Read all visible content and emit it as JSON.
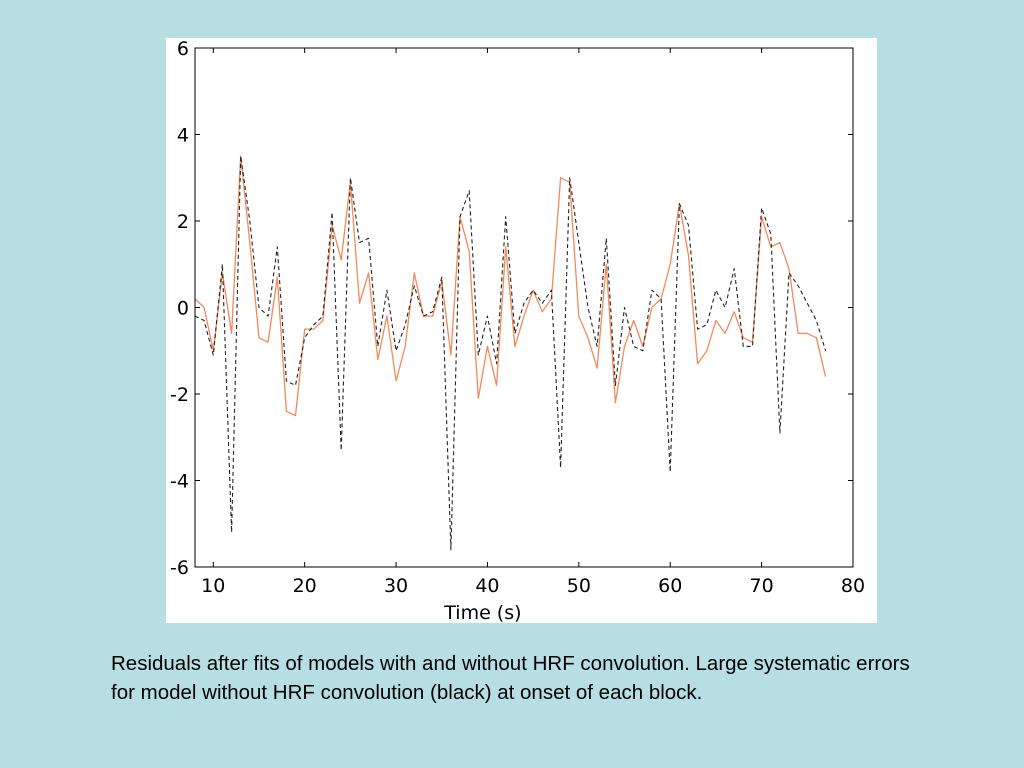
{
  "caption": "Residuals after fits of models with and without HRF convolution. Large systematic errors for model without HRF convolution (black) at onset of each block.",
  "chart_data": {
    "type": "line",
    "title": "",
    "xlabel": "Time (s)",
    "ylabel": "",
    "xlim": [
      8,
      80
    ],
    "ylim": [
      -6,
      6
    ],
    "xticks": [
      10,
      20,
      30,
      40,
      50,
      60,
      70,
      80
    ],
    "yticks": [
      -6,
      -4,
      -2,
      0,
      2,
      4,
      6
    ],
    "grid": false,
    "legend": "none",
    "series": [
      {
        "color": "#f08a5d",
        "line_style": "solid",
        "x": [
          8,
          9,
          10,
          11,
          12,
          13,
          14,
          15,
          16,
          17,
          18,
          19,
          20,
          21,
          22,
          23,
          24,
          25,
          26,
          27,
          28,
          29,
          30,
          31,
          32,
          33,
          34,
          35,
          36,
          37,
          38,
          39,
          40,
          41,
          42,
          43,
          44,
          45,
          46,
          47,
          48,
          49,
          50,
          51,
          52,
          53,
          54,
          55,
          56,
          57,
          58,
          59,
          60,
          61,
          62,
          63,
          64,
          65,
          66,
          67,
          68,
          69,
          70,
          71,
          72,
          73,
          74,
          75,
          76,
          77
        ],
        "y": [
          0.2,
          0.0,
          -1.0,
          0.8,
          -0.6,
          3.5,
          1.5,
          -0.7,
          -0.8,
          0.7,
          -2.4,
          -2.5,
          -0.5,
          -0.5,
          -0.3,
          1.9,
          1.1,
          2.9,
          0.1,
          0.8,
          -1.2,
          -0.2,
          -1.7,
          -0.9,
          0.8,
          -0.2,
          -0.2,
          0.6,
          -1.1,
          2.1,
          1.3,
          -2.1,
          -0.9,
          -1.8,
          1.4,
          -0.9,
          -0.2,
          0.4,
          -0.1,
          0.2,
          3.0,
          2.9,
          -0.2,
          -0.7,
          -1.4,
          1.0,
          -2.2,
          -0.9,
          -0.3,
          -0.9,
          0.0,
          0.2,
          1.0,
          2.4,
          1.2,
          -1.3,
          -1.0,
          -0.3,
          -0.6,
          -0.1,
          -0.7,
          -0.8,
          2.1,
          1.4,
          1.5,
          0.9,
          -0.6,
          -0.6,
          -0.7,
          -1.6
        ]
      },
      {
        "color": "#222222",
        "line_style": "dashed",
        "x": [
          8,
          9,
          10,
          11,
          12,
          13,
          14,
          15,
          16,
          17,
          18,
          19,
          20,
          21,
          22,
          23,
          24,
          25,
          26,
          27,
          28,
          29,
          30,
          31,
          32,
          33,
          34,
          35,
          36,
          37,
          38,
          39,
          40,
          41,
          42,
          43,
          44,
          45,
          46,
          47,
          48,
          49,
          50,
          51,
          52,
          53,
          54,
          55,
          56,
          57,
          58,
          59,
          60,
          61,
          62,
          63,
          64,
          65,
          66,
          67,
          68,
          69,
          70,
          71,
          72,
          73,
          74,
          75,
          76,
          77
        ],
        "y": [
          -0.2,
          -0.3,
          -1.1,
          1.0,
          -5.2,
          3.5,
          2.0,
          0.0,
          -0.2,
          1.4,
          -1.7,
          -1.8,
          -0.7,
          -0.4,
          -0.2,
          2.2,
          -3.3,
          3.0,
          1.5,
          1.6,
          -0.9,
          0.4,
          -1.0,
          -0.4,
          0.5,
          -0.2,
          -0.1,
          0.7,
          -5.6,
          2.1,
          2.7,
          -1.1,
          -0.2,
          -1.3,
          2.1,
          -0.6,
          0.1,
          0.4,
          0.1,
          0.4,
          -3.7,
          3.0,
          1.5,
          0.0,
          -0.9,
          1.6,
          -1.8,
          0.0,
          -0.9,
          -1.0,
          0.4,
          0.2,
          -3.8,
          2.4,
          1.9,
          -0.5,
          -0.4,
          0.4,
          0.0,
          0.9,
          -0.9,
          -0.9,
          2.3,
          1.7,
          -2.9,
          0.8,
          0.5,
          0.1,
          -0.3,
          -1.0
        ]
      }
    ]
  }
}
